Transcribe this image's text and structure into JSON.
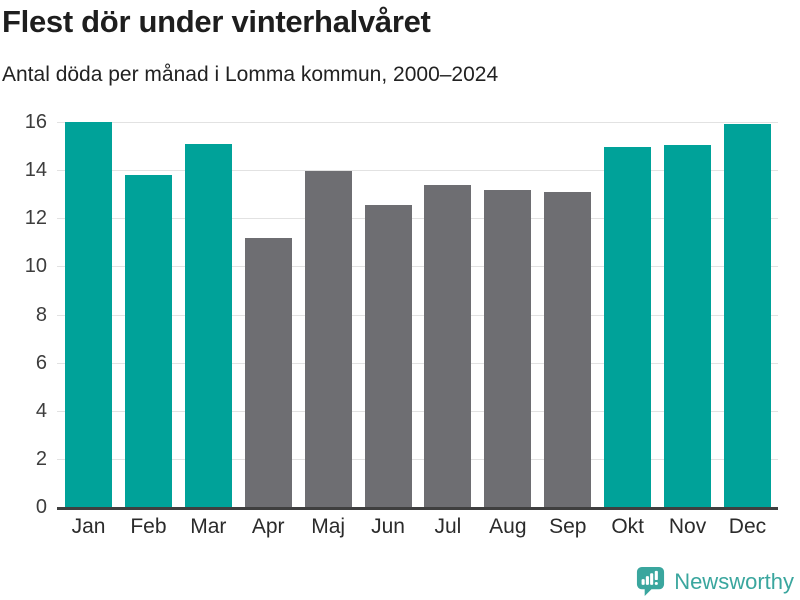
{
  "header": {
    "title": "Flest dör under vinterhalvåret",
    "subtitle": "Antal döda per månad i Lomma kommun, 2000–2024"
  },
  "chart_data": {
    "type": "bar",
    "title": "Flest dör under vinterhalvåret",
    "subtitle": "Antal döda per månad i Lomma kommun, 2000–2024",
    "categories": [
      "Jan",
      "Feb",
      "Mar",
      "Apr",
      "Maj",
      "Jun",
      "Jul",
      "Aug",
      "Sep",
      "Okt",
      "Nov",
      "Dec"
    ],
    "values": [
      16.0,
      13.8,
      15.08,
      11.2,
      13.96,
      12.56,
      13.4,
      13.16,
      13.08,
      14.96,
      15.04,
      15.92
    ],
    "highlighted_categories": [
      "Jan",
      "Feb",
      "Mar",
      "Okt",
      "Nov",
      "Dec"
    ],
    "xlabel": "",
    "ylabel": "",
    "ylim": [
      0,
      16
    ],
    "yticks": [
      0,
      2,
      4,
      6,
      8,
      10,
      12,
      14,
      16
    ],
    "grid": true,
    "legend_position": "none"
  },
  "colors": {
    "winter_bar": "#00a299",
    "summer_bar": "#6e6e72",
    "gridline": "#e2e2e2",
    "axis_line": "#3f3f3f",
    "brand_teal": "#3aa69e"
  },
  "footer": {
    "brand": "Newsworthy"
  },
  "icons": {
    "logo": "newsworthy-speech-bubble-bar-chart-icon"
  }
}
